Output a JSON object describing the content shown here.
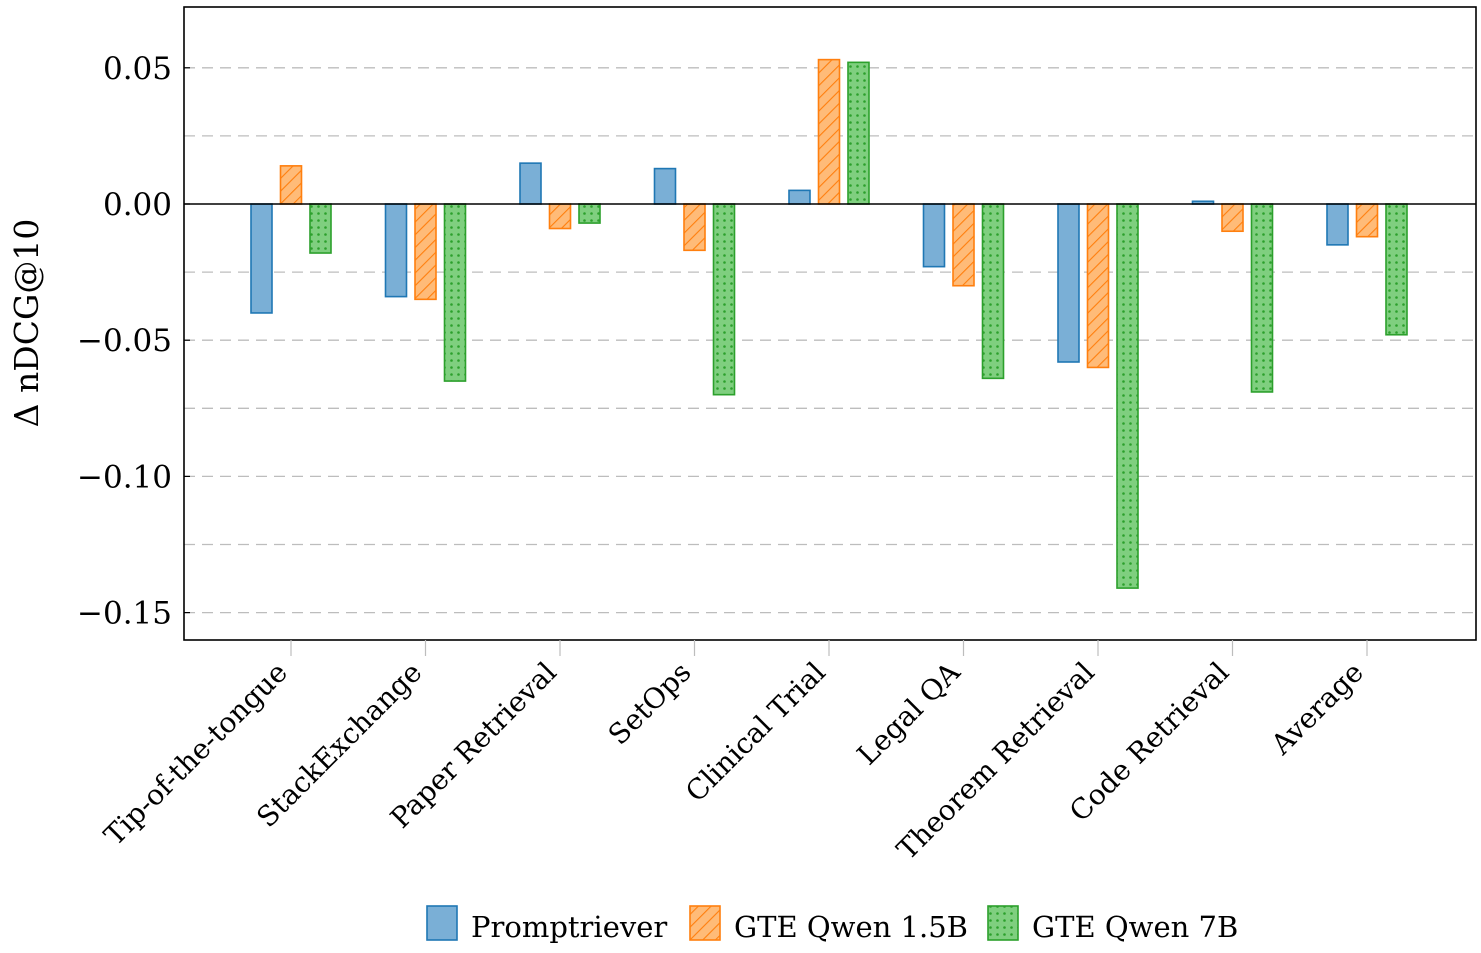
{
  "chart_data": {
    "type": "bar",
    "title": "",
    "xlabel": "",
    "ylabel": "Δ nDCG@10",
    "ylim": [
      -0.16,
      0.072
    ],
    "yticks": [
      0.05,
      0.0,
      -0.05,
      -0.1,
      -0.15
    ],
    "ytick_labels": [
      "0.05",
      "0.00",
      "−0.05",
      "−0.10",
      "−0.15"
    ],
    "grid": "horizontal dashed",
    "legend_position": "bottom",
    "categories": [
      "Tip-of-the-tongue",
      "StackExchange",
      "Paper Retrieval",
      "SetOps",
      "Clinical Trial",
      "Legal QA",
      "Theorem Retrieval",
      "Code Retrieval",
      "Average"
    ],
    "series": [
      {
        "name": "Promptriever",
        "color": "#7aafd6",
        "stroke": "#1f77b4",
        "pattern": "solid",
        "values": [
          -0.04,
          -0.034,
          0.015,
          0.013,
          0.005,
          -0.023,
          -0.058,
          0.001,
          -0.015
        ]
      },
      {
        "name": "GTE Qwen 1.5B",
        "color": "#ffbb78",
        "stroke": "#ff7f0e",
        "pattern": "hatch",
        "values": [
          0.014,
          -0.035,
          -0.009,
          -0.017,
          0.053,
          -0.03,
          -0.06,
          -0.01,
          -0.012
        ]
      },
      {
        "name": "GTE Qwen 7B",
        "color": "#7fcf7f",
        "stroke": "#2ca02c",
        "pattern": "dots",
        "values": [
          -0.018,
          -0.065,
          -0.007,
          -0.07,
          0.052,
          -0.064,
          -0.141,
          -0.069,
          -0.048
        ]
      }
    ]
  }
}
